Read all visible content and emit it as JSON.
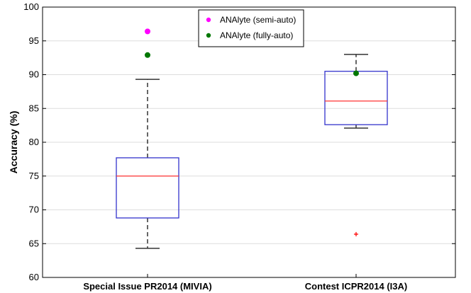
{
  "chart_data": {
    "type": "box",
    "title": "",
    "xlabel": "",
    "ylabel": "Accuracy (%)",
    "ylim": [
      60,
      100
    ],
    "yticks": [
      60,
      65,
      70,
      75,
      80,
      85,
      90,
      95,
      100
    ],
    "grid": "horizontal",
    "categories": [
      "Special Issue PR2014 (MIVIA)",
      "Contest ICPR2014 (I3A)"
    ],
    "boxes": [
      {
        "category": "Special Issue PR2014 (MIVIA)",
        "whisker_low": 64.3,
        "q1": 68.8,
        "median": 75.0,
        "q3": 77.7,
        "whisker_high": 89.3,
        "outliers": []
      },
      {
        "category": "Contest ICPR2014 (I3A)",
        "whisker_low": 82.1,
        "q1": 82.6,
        "median": 86.1,
        "q3": 90.5,
        "whisker_high": 93.0,
        "outliers": [
          66.4
        ]
      }
    ],
    "series": [
      {
        "name": "ANAlyte (semi-auto)",
        "color": "#ff00ff",
        "points": [
          {
            "category": "Special Issue PR2014 (MIVIA)",
            "y": 96.4
          }
        ]
      },
      {
        "name": "ANAlyte (fully-auto)",
        "color": "#007700",
        "points": [
          {
            "category": "Special Issue PR2014 (MIVIA)",
            "y": 92.9
          },
          {
            "category": "Contest ICPR2014 (I3A)",
            "y": 90.2
          }
        ]
      }
    ],
    "legend_position": "top-center",
    "colors": {
      "box": "#3333cc",
      "median": "#ff3333",
      "whisker": "#333333",
      "outlier": "#ff0000",
      "grid": "#dddddd"
    }
  }
}
